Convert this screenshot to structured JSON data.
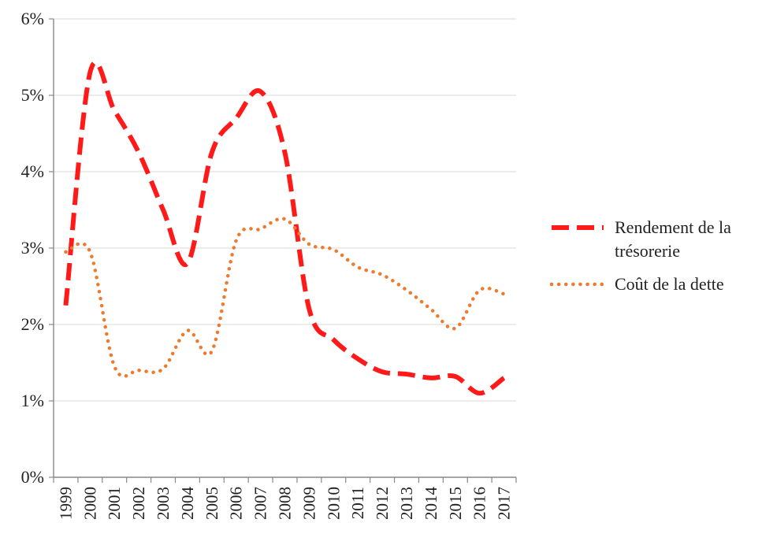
{
  "chart_data": {
    "type": "line",
    "title": "",
    "xlabel": "",
    "ylabel": "",
    "ylim": [
      0,
      0.06
    ],
    "yticks": [
      {
        "value": 0.0,
        "label": "0%"
      },
      {
        "value": 0.01,
        "label": "1%"
      },
      {
        "value": 0.02,
        "label": "2%"
      },
      {
        "value": 0.03,
        "label": "3%"
      },
      {
        "value": 0.04,
        "label": "4%"
      },
      {
        "value": 0.05,
        "label": "5%"
      },
      {
        "value": 0.06,
        "label": "6%"
      }
    ],
    "categories": [
      "1999",
      "2000",
      "2001",
      "2002",
      "2003",
      "2004",
      "2005",
      "2006",
      "2007",
      "2008",
      "2009",
      "2010",
      "2011",
      "2012",
      "2013",
      "2014",
      "2015",
      "2016",
      "2017"
    ],
    "grid": true,
    "legend_position": "right",
    "series": [
      {
        "name_lines": [
          "Rendement de la",
          "trésorerie"
        ],
        "color": "#ff1a1a",
        "style": "dashed",
        "values": [
          0.0225,
          0.053,
          0.048,
          0.0425,
          0.035,
          0.028,
          0.0425,
          0.047,
          0.0505,
          0.0425,
          0.022,
          0.018,
          0.0155,
          0.0138,
          0.0135,
          0.013,
          0.0132,
          0.011,
          0.013
        ]
      },
      {
        "name_lines": [
          "Coût de la dette"
        ],
        "color": "#ee7a2e",
        "style": "dotted",
        "values": [
          0.0295,
          0.0295,
          0.0145,
          0.014,
          0.0142,
          0.0192,
          0.0165,
          0.031,
          0.0325,
          0.0338,
          0.0305,
          0.0298,
          0.0275,
          0.0265,
          0.0245,
          0.022,
          0.0195,
          0.0245,
          0.024
        ]
      }
    ]
  }
}
